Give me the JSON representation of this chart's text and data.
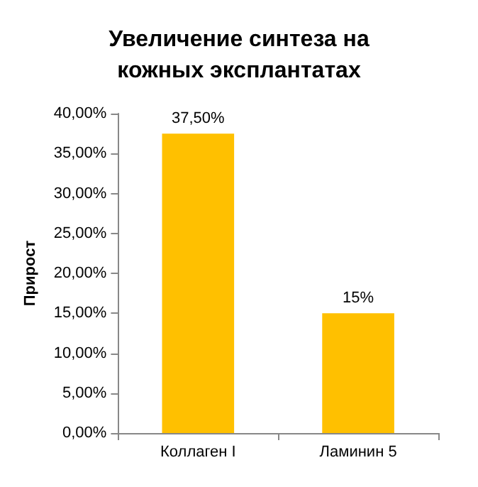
{
  "chart_data": {
    "type": "bar",
    "title": "Увеличение синтеза на\nкожных эксплантатах",
    "ylabel": "Прирост",
    "categories": [
      "Коллаген I",
      "Ламинин 5"
    ],
    "values": [
      37.5,
      15
    ],
    "value_labels": [
      "37,50%",
      "15%"
    ],
    "color": "#ffc000",
    "ylim": [
      0,
      40
    ],
    "yticks": [
      {
        "value": 0,
        "label": "0,00%"
      },
      {
        "value": 5,
        "label": "5,00%"
      },
      {
        "value": 10,
        "label": "10,00%"
      },
      {
        "value": 15,
        "label": "15,00%"
      },
      {
        "value": 20,
        "label": "20,00%"
      },
      {
        "value": 25,
        "label": "25,00%"
      },
      {
        "value": 30,
        "label": "30,00%"
      },
      {
        "value": 35,
        "label": "35,00%"
      },
      {
        "value": 40,
        "label": "40,00%"
      }
    ],
    "grid": false
  }
}
